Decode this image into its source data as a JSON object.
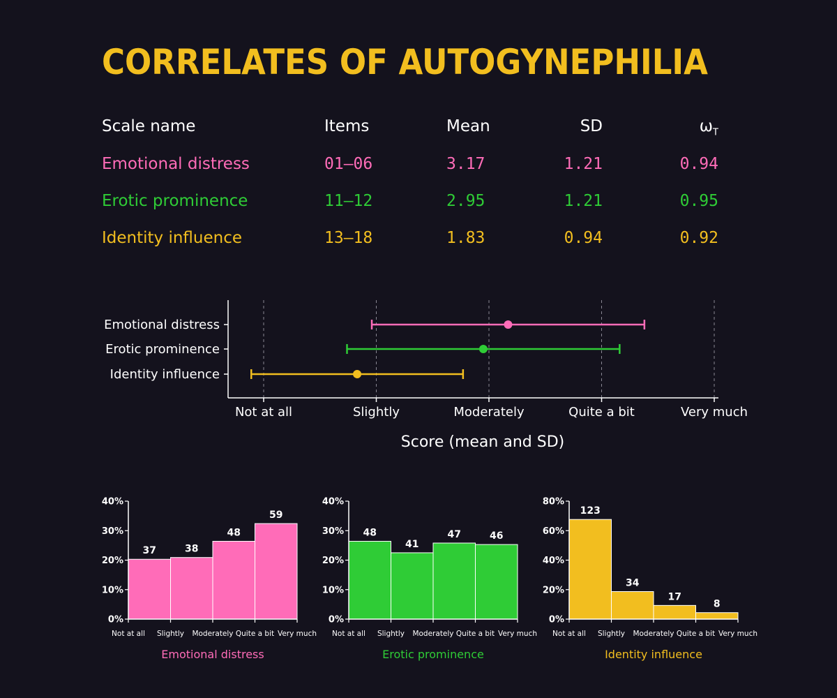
{
  "title": "CORRELATES OF AUTOGYNEPHILIA",
  "colors": {
    "background": "#14121d",
    "title": "#f2be1f",
    "emotional": "#ff6cb8",
    "erotic": "#2fcc36",
    "identity": "#f2be1f",
    "axis": "#ffffff",
    "grid": "#8a8894"
  },
  "table": {
    "headers": {
      "name": "Scale name",
      "items": "Items",
      "mean": "Mean",
      "sd": "SD",
      "omega": "ω",
      "omega_sub": "T"
    },
    "rows": [
      {
        "name": "Emotional distress",
        "items": "01–06",
        "mean": "3.17",
        "sd": "1.21",
        "omega": "0.94"
      },
      {
        "name": "Erotic prominence",
        "items": "11–12",
        "mean": "2.95",
        "sd": "1.21",
        "omega": "0.95"
      },
      {
        "name": "Identity influence",
        "items": "13–18",
        "mean": "1.83",
        "sd": "0.94",
        "omega": "0.92"
      }
    ]
  },
  "chart_data": [
    {
      "type": "scatter",
      "subtype": "errorbar",
      "categories": [
        "Emotional distress",
        "Erotic prominence",
        "Identity influence"
      ],
      "mean": [
        3.17,
        2.95,
        1.83
      ],
      "sd": [
        1.21,
        1.21,
        0.94
      ],
      "xlim": [
        0.7,
        5.05
      ],
      "xticks": [
        1,
        2,
        3,
        4,
        5
      ],
      "xticklabels": [
        "Not at all",
        "Slightly",
        "Moderately",
        "Quite a bit",
        "Very much"
      ],
      "xlabel": "Score (mean and SD)",
      "grid": "x-dashed"
    },
    {
      "type": "bar",
      "title": "Emotional distress",
      "categories": [
        "Not at all",
        "Slightly",
        "Moderately",
        "Quite a bit",
        "Very much"
      ],
      "values": [
        20.3,
        20.9,
        26.4,
        32.4
      ],
      "labels": [
        "37",
        "38",
        "48",
        "59"
      ],
      "yticks": [
        "0%",
        "10%",
        "20%",
        "30%",
        "40%"
      ],
      "ylim": [
        0,
        40
      ]
    },
    {
      "type": "bar",
      "title": "Erotic prominence",
      "categories": [
        "Not at all",
        "Slightly",
        "Moderately",
        "Quite a bit",
        "Very much"
      ],
      "values": [
        26.4,
        22.5,
        25.8,
        25.3
      ],
      "labels": [
        "48",
        "41",
        "47",
        "46"
      ],
      "yticks": [
        "0%",
        "10%",
        "20%",
        "30%",
        "40%"
      ],
      "ylim": [
        0,
        40
      ]
    },
    {
      "type": "bar",
      "title": "Identity influence",
      "categories": [
        "Not at all",
        "Slightly",
        "Moderately",
        "Quite a bit",
        "Very much"
      ],
      "values": [
        67.6,
        18.7,
        9.3,
        4.4
      ],
      "labels": [
        "123",
        "34",
        "17",
        "8"
      ],
      "yticks": [
        "0%",
        "20%",
        "40%",
        "60%",
        "80%"
      ],
      "ylim": [
        0,
        80
      ]
    }
  ]
}
